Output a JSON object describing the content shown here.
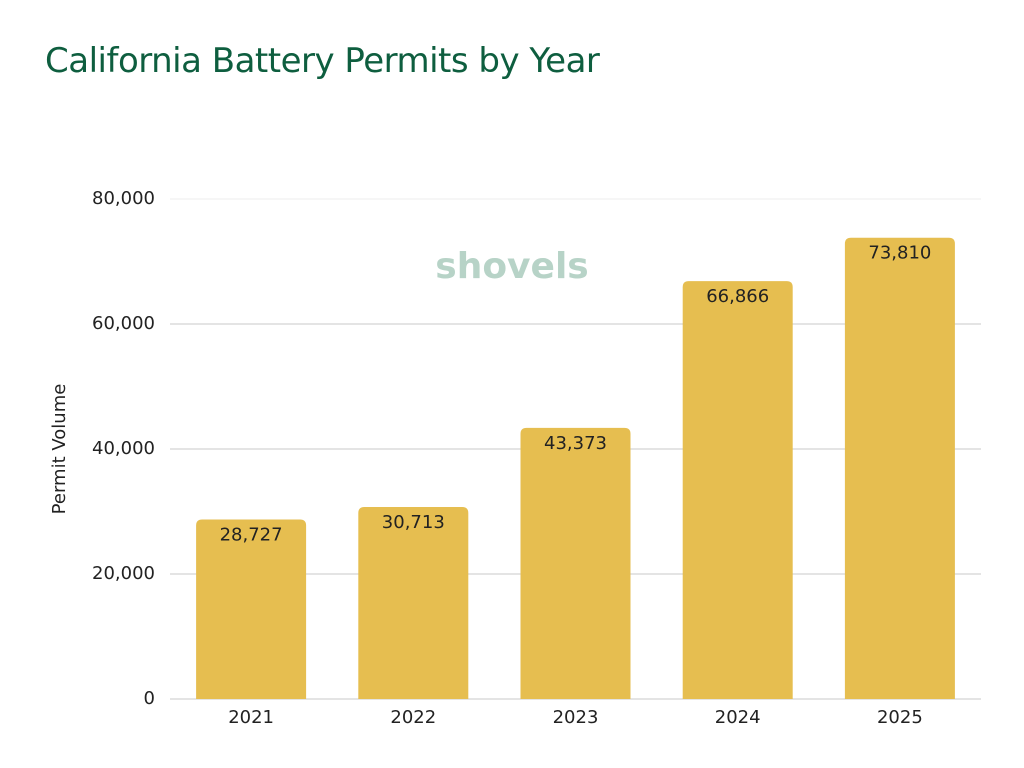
{
  "chart_data": {
    "type": "bar",
    "title": "California Battery Permits by Year",
    "watermark": "shovels",
    "y_label": "Permit Volume",
    "categories": [
      "2021",
      "2022",
      "2023",
      "2024",
      "2025"
    ],
    "values": [
      28727,
      30713,
      43373,
      66866,
      73810
    ],
    "value_labels": [
      "28,727",
      "30,713",
      "43,373",
      "66,866",
      "73,810"
    ],
    "color": "#e6be50",
    "ylim": [
      0,
      80000
    ],
    "yticks": [
      0,
      {
        "value": 20000,
        "label": "20,000"
      },
      {
        "value": 40000,
        "label": "40,000"
      },
      {
        "value": 60000,
        "label": "60,000"
      },
      {
        "value": 80000,
        "label": "80,000"
      }
    ],
    "grid": true
  }
}
